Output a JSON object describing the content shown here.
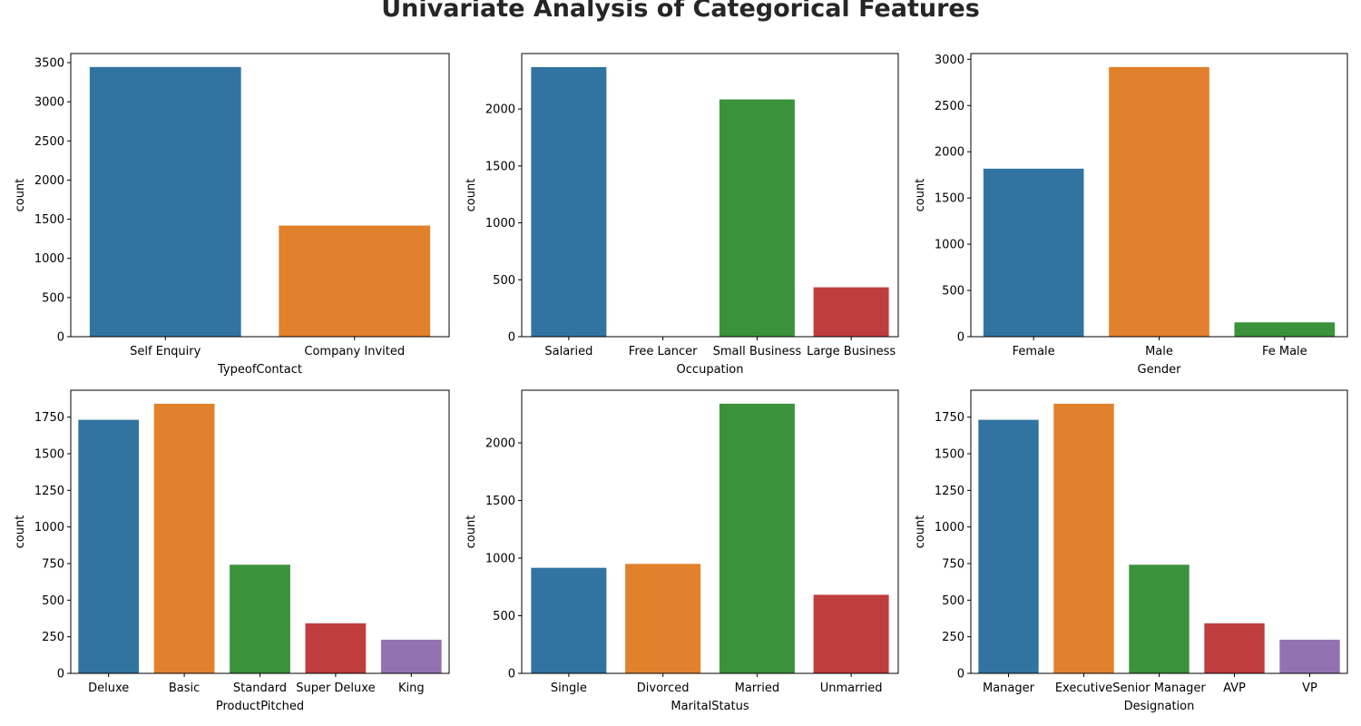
{
  "title": "Univariate Analysis of Categorical Features",
  "ylabel": "count",
  "colors": [
    "#3274a1",
    "#e1812c",
    "#3a923a",
    "#c03d3e",
    "#9372b2"
  ],
  "chart_data": [
    {
      "type": "bar",
      "xlabel": "TypeofContact",
      "ylabel": "count",
      "categories": [
        "Self Enquiry",
        "Company Invited"
      ],
      "values": [
        3444,
        1419
      ],
      "ylim": [
        0,
        3616
      ],
      "yticks": [
        0,
        500,
        1000,
        1500,
        2000,
        2500,
        3000,
        3500
      ],
      "grid": false
    },
    {
      "type": "bar",
      "xlabel": "Occupation",
      "ylabel": "count",
      "categories": [
        "Salaried",
        "Free Lancer",
        "Small Business",
        "Large Business"
      ],
      "values": [
        2368,
        2,
        2084,
        434
      ],
      "ylim": [
        0,
        2487
      ],
      "yticks": [
        0,
        500,
        1000,
        1500,
        2000
      ],
      "grid": false
    },
    {
      "type": "bar",
      "xlabel": "Gender",
      "ylabel": "count",
      "categories": [
        "Female",
        "Male",
        "Fe Male"
      ],
      "values": [
        1817,
        2916,
        155
      ],
      "ylim": [
        0,
        3062
      ],
      "yticks": [
        0,
        500,
        1000,
        1500,
        2000,
        2500,
        3000
      ],
      "grid": false
    },
    {
      "type": "bar",
      "xlabel": "ProductPitched",
      "ylabel": "count",
      "categories": [
        "Deluxe",
        "Basic",
        "Standard",
        "Super Deluxe",
        "King"
      ],
      "values": [
        1732,
        1842,
        742,
        342,
        230
      ],
      "ylim": [
        0,
        1934
      ],
      "yticks": [
        0,
        250,
        500,
        750,
        1000,
        1250,
        1500,
        1750
      ],
      "grid": false
    },
    {
      "type": "bar",
      "xlabel": "MaritalStatus",
      "ylabel": "count",
      "categories": [
        "Single",
        "Divorced",
        "Married",
        "Unmarried"
      ],
      "values": [
        916,
        950,
        2340,
        682
      ],
      "ylim": [
        0,
        2457
      ],
      "yticks": [
        0,
        500,
        1000,
        1500,
        2000
      ],
      "grid": false
    },
    {
      "type": "bar",
      "xlabel": "Designation",
      "ylabel": "count",
      "categories": [
        "Manager",
        "Executive",
        "Senior Manager",
        "AVP",
        "VP"
      ],
      "values": [
        1732,
        1842,
        742,
        342,
        230
      ],
      "ylim": [
        0,
        1934
      ],
      "yticks": [
        0,
        250,
        500,
        750,
        1000,
        1250,
        1500,
        1750
      ],
      "grid": false
    }
  ]
}
